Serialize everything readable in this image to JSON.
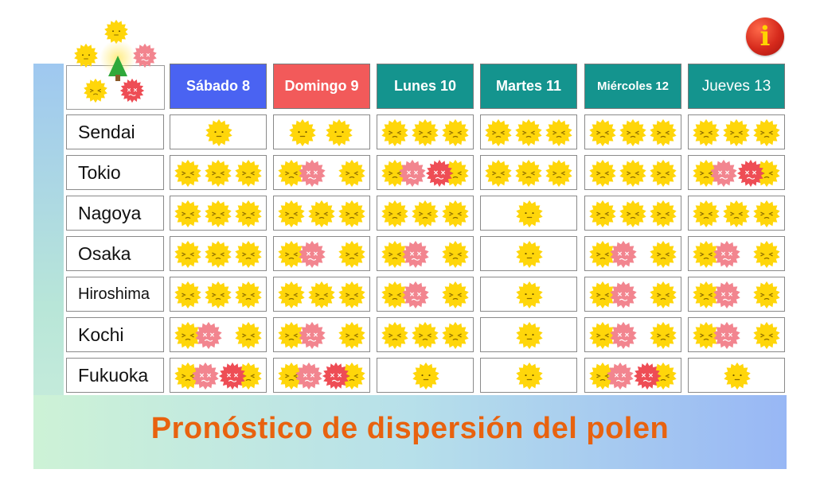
{
  "title": "Pronóstico de dispersión del polen",
  "info_glyph": "i",
  "colors": {
    "title": "#e8620f",
    "saturday": "#4a63f2",
    "sunday": "#f25a5a",
    "weekday": "#14948e",
    "sun": "#ffd60a",
    "red_light": "#f2858f",
    "red_dark": "#ee4d55"
  },
  "legend": {
    "icons": [
      "sun-1-icon",
      "sun-2-icon",
      "sun-3-icon",
      "red-4-icon",
      "red-5-icon",
      "tree-icon"
    ]
  },
  "days": [
    "Sábado 8",
    "Domingo 9",
    "Lunes 10",
    "Martes 11",
    "Miércoles 12",
    "Jueves 13"
  ],
  "cities": [
    "Sendai",
    "Tokio",
    "Nagoya",
    "Osaka",
    "Hiroshima",
    "Kochi",
    "Fukuoka"
  ],
  "forecast_levels": [
    [
      1,
      2,
      3,
      3,
      3,
      3
    ],
    [
      3,
      4,
      5,
      3,
      3,
      5
    ],
    [
      3,
      3,
      3,
      1,
      3,
      3
    ],
    [
      3,
      4,
      4,
      1,
      4,
      4
    ],
    [
      3,
      3,
      4,
      1,
      4,
      4
    ],
    [
      4,
      4,
      3,
      1,
      4,
      4
    ],
    [
      5,
      5,
      1,
      1,
      5,
      1
    ]
  ]
}
